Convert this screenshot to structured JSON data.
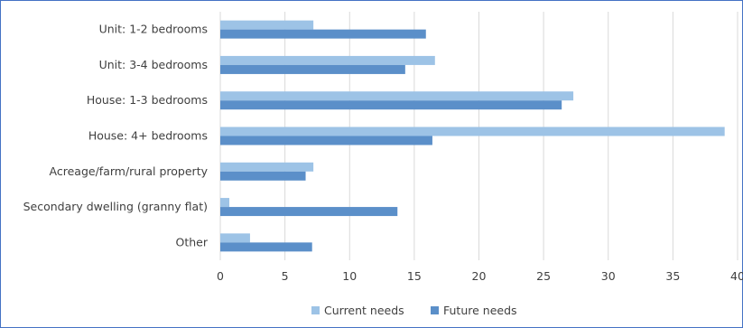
{
  "chart_data": {
    "type": "bar",
    "orientation": "horizontal",
    "categories": [
      "Unit: 1-2 bedrooms",
      "Unit: 3-4 bedrooms",
      "House: 1-3 bedrooms",
      "House: 4+ bedrooms",
      "Acreage/farm/rural property",
      "Secondary dwelling (granny flat)",
      "Other"
    ],
    "series": [
      {
        "name": "Current needs",
        "color": "#9DC3E6",
        "values": [
          7.2,
          16.6,
          27.3,
          39.0,
          7.2,
          0.7,
          2.3
        ]
      },
      {
        "name": "Future needs",
        "color": "#5B8FC9",
        "values": [
          15.9,
          14.3,
          26.4,
          16.4,
          6.6,
          13.7,
          7.1
        ]
      }
    ],
    "xlim": [
      0,
      40
    ],
    "xticks": [
      "0",
      "5",
      "10",
      "15",
      "20",
      "25",
      "30",
      "35",
      "40"
    ],
    "grid": "vertical",
    "legend": "bottom-center",
    "title": "",
    "xlabel": "",
    "ylabel": ""
  }
}
